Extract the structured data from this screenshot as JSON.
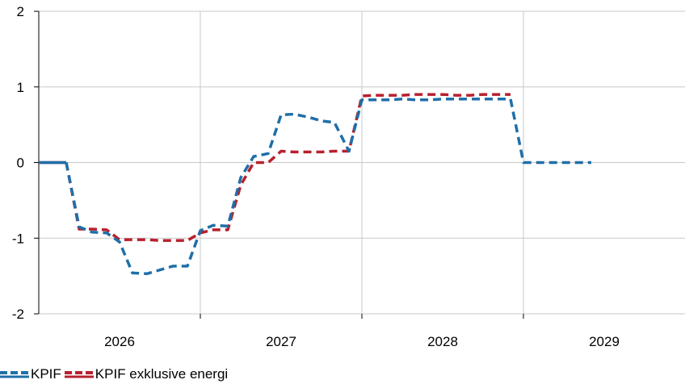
{
  "chart_data": {
    "type": "line",
    "title": "",
    "xlabel": "",
    "ylabel": "",
    "ylim": [
      -2,
      2
    ],
    "yticks": [
      "2",
      "1",
      "0",
      "-1",
      "-2"
    ],
    "xlim": [
      2025.5,
      2029.5
    ],
    "xtick_labels": [
      {
        "x": 2026,
        "label": "2026"
      },
      {
        "x": 2027,
        "label": "2027"
      },
      {
        "x": 2028,
        "label": "2028"
      },
      {
        "x": 2029,
        "label": "2029"
      }
    ],
    "vertical_gridlines_at": [
      2026.5,
      2027.5,
      2028.5
    ],
    "grid": true,
    "legend_position": "bottom-left",
    "series": [
      {
        "name": "KPIF",
        "color": "#1f6fa8",
        "style": "solid-then-dashed",
        "solid_until_x": 2025.67,
        "points": [
          [
            2025.5,
            0.0
          ],
          [
            2025.67,
            0.0
          ],
          [
            2025.75,
            -0.85
          ],
          [
            2025.83,
            -0.92
          ],
          [
            2025.92,
            -0.93
          ],
          [
            2026.0,
            -1.05
          ],
          [
            2026.08,
            -1.46
          ],
          [
            2026.17,
            -1.47
          ],
          [
            2026.25,
            -1.42
          ],
          [
            2026.33,
            -1.37
          ],
          [
            2026.42,
            -1.37
          ],
          [
            2026.5,
            -0.9
          ],
          [
            2026.58,
            -0.83
          ],
          [
            2026.67,
            -0.84
          ],
          [
            2026.75,
            -0.2
          ],
          [
            2026.83,
            0.08
          ],
          [
            2026.92,
            0.12
          ],
          [
            2027.0,
            0.63
          ],
          [
            2027.08,
            0.64
          ],
          [
            2027.17,
            0.6
          ],
          [
            2027.25,
            0.55
          ],
          [
            2027.33,
            0.53
          ],
          [
            2027.42,
            0.15
          ],
          [
            2027.5,
            0.83
          ],
          [
            2027.58,
            0.83
          ],
          [
            2027.67,
            0.83
          ],
          [
            2027.75,
            0.84
          ],
          [
            2027.83,
            0.83
          ],
          [
            2027.92,
            0.83
          ],
          [
            2028.0,
            0.84
          ],
          [
            2028.08,
            0.84
          ],
          [
            2028.17,
            0.84
          ],
          [
            2028.25,
            0.84
          ],
          [
            2028.33,
            0.84
          ],
          [
            2028.42,
            0.84
          ],
          [
            2028.5,
            0.0
          ],
          [
            2028.58,
            0.0
          ],
          [
            2028.67,
            0.0
          ],
          [
            2028.75,
            0.0
          ],
          [
            2028.83,
            0.0
          ],
          [
            2028.92,
            0.0
          ]
        ]
      },
      {
        "name": "KPIF exklusive energi",
        "color": "#b8202e",
        "style": "solid-then-dashed",
        "solid_until_x": 2025.67,
        "points": [
          [
            2025.5,
            0.0
          ],
          [
            2025.67,
            0.0
          ],
          [
            2025.75,
            -0.88
          ],
          [
            2025.83,
            -0.88
          ],
          [
            2025.92,
            -0.89
          ],
          [
            2026.0,
            -1.02
          ],
          [
            2026.08,
            -1.02
          ],
          [
            2026.17,
            -1.02
          ],
          [
            2026.25,
            -1.03
          ],
          [
            2026.33,
            -1.03
          ],
          [
            2026.42,
            -1.03
          ],
          [
            2026.5,
            -0.93
          ],
          [
            2026.58,
            -0.89
          ],
          [
            2026.67,
            -0.89
          ],
          [
            2026.75,
            -0.3
          ],
          [
            2026.83,
            0.0
          ],
          [
            2026.92,
            0.0
          ],
          [
            2027.0,
            0.15
          ],
          [
            2027.08,
            0.14
          ],
          [
            2027.17,
            0.14
          ],
          [
            2027.25,
            0.14
          ],
          [
            2027.33,
            0.15
          ],
          [
            2027.42,
            0.15
          ],
          [
            2027.5,
            0.88
          ],
          [
            2027.58,
            0.89
          ],
          [
            2027.67,
            0.89
          ],
          [
            2027.75,
            0.89
          ],
          [
            2027.83,
            0.9
          ],
          [
            2027.92,
            0.9
          ],
          [
            2028.0,
            0.9
          ],
          [
            2028.08,
            0.89
          ],
          [
            2028.17,
            0.89
          ],
          [
            2028.25,
            0.9
          ],
          [
            2028.33,
            0.9
          ],
          [
            2028.42,
            0.9
          ]
        ]
      }
    ],
    "colors": {
      "grid": "#c8c8c8",
      "axis": "#000000",
      "text": "#000000"
    }
  }
}
